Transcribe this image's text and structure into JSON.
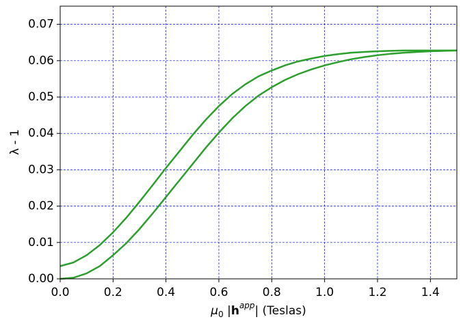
{
  "chart_data": {
    "type": "line",
    "xlabel": [
      "μ",
      "0",
      " |",
      "h",
      "app",
      "| (Teslas)"
    ],
    "ylabel": "λ - 1",
    "x": [
      0,
      0.05,
      0.1,
      0.15,
      0.2,
      0.25,
      0.3,
      0.35,
      0.4,
      0.45,
      0.5,
      0.55,
      0.6,
      0.65,
      0.7,
      0.75,
      0.8,
      0.85,
      0.9,
      0.95,
      1.0,
      1.05,
      1.1,
      1.15,
      1.2,
      1.25,
      1.3,
      1.35,
      1.4,
      1.45,
      1.5
    ],
    "series": [
      {
        "color": "#2ca02c",
        "values": [
          0.0035,
          0.0045,
          0.0065,
          0.0093,
          0.0128,
          0.0168,
          0.0212,
          0.0258,
          0.0305,
          0.035,
          0.0395,
          0.0437,
          0.0475,
          0.0508,
          0.0535,
          0.0557,
          0.0573,
          0.0587,
          0.0598,
          0.0606,
          0.0613,
          0.0618,
          0.0622,
          0.0624,
          0.0626,
          0.0627,
          0.0628,
          0.0628,
          0.0628,
          0.0628,
          0.0628
        ]
      },
      {
        "color": "#2ca02c",
        "values": [
          0.0,
          0.0003,
          0.0015,
          0.0035,
          0.0065,
          0.0098,
          0.0137,
          0.018,
          0.0225,
          0.027,
          0.0315,
          0.036,
          0.0402,
          0.0441,
          0.0475,
          0.0504,
          0.0527,
          0.0547,
          0.0563,
          0.0576,
          0.0587,
          0.0596,
          0.0604,
          0.061,
          0.0615,
          0.0619,
          0.0622,
          0.0624,
          0.0626,
          0.0627,
          0.0628
        ]
      }
    ],
    "xlim": [
      0,
      1.5
    ],
    "xticks": [
      {
        "value": 0,
        "label": "0.0"
      },
      0.2,
      0.4,
      0.6,
      0.8,
      {
        "value": 1,
        "label": "1.0"
      },
      1.2,
      1.4
    ],
    "ylim": [
      0,
      0.075
    ],
    "yticks": [
      {
        "value": 0,
        "label": "0.00"
      },
      0.01,
      0.02,
      0.03,
      0.04,
      0.05,
      0.06,
      0.07
    ],
    "grid": true,
    "grid_color": "#0000ff"
  }
}
